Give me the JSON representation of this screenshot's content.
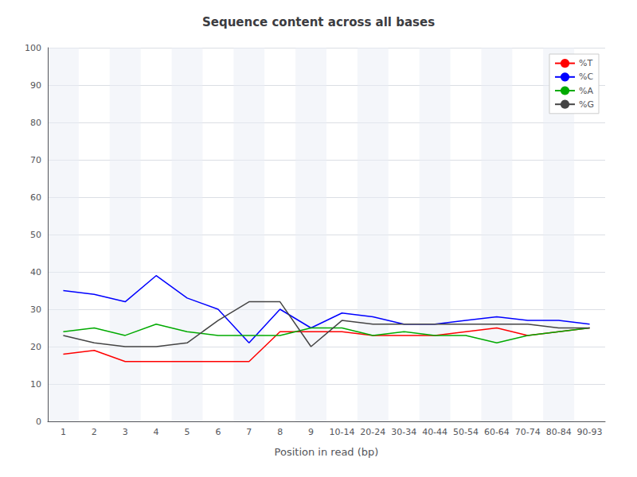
{
  "chart_data": {
    "type": "line",
    "title": "Sequence content across all bases",
    "xlabel": "Position in read (bp)",
    "categories": [
      "1",
      "2",
      "3",
      "4",
      "5",
      "6",
      "7",
      "8",
      "9",
      "10-14",
      "20-24",
      "30-34",
      "40-44",
      "50-54",
      "60-64",
      "70-74",
      "80-84",
      "90-93"
    ],
    "series": [
      {
        "name": "%T",
        "color": "#ff0000",
        "values": [
          18,
          19,
          16,
          16,
          16,
          16,
          16,
          24,
          24,
          24,
          23,
          23,
          23,
          24,
          25,
          23,
          24,
          25
        ]
      },
      {
        "name": "%C",
        "color": "#0000ff",
        "values": [
          35,
          34,
          32,
          39,
          33,
          30,
          21,
          30,
          25,
          29,
          28,
          26,
          26,
          27,
          28,
          27,
          27,
          26
        ]
      },
      {
        "name": "%A",
        "color": "#00aa00",
        "values": [
          24,
          25,
          23,
          26,
          24,
          23,
          23,
          23,
          25,
          25,
          23,
          24,
          23,
          23,
          21,
          23,
          24,
          25
        ]
      },
      {
        "name": "%G",
        "color": "#444444",
        "values": [
          23,
          21,
          20,
          20,
          21,
          27,
          32,
          32,
          20,
          27,
          26,
          26,
          26,
          26,
          26,
          26,
          25,
          25
        ]
      }
    ],
    "ylim": [
      0,
      100
    ],
    "yticks": [
      0,
      10,
      20,
      30,
      40,
      50,
      60,
      70,
      80,
      90,
      100
    ],
    "grid": true,
    "legend": "upper right"
  }
}
